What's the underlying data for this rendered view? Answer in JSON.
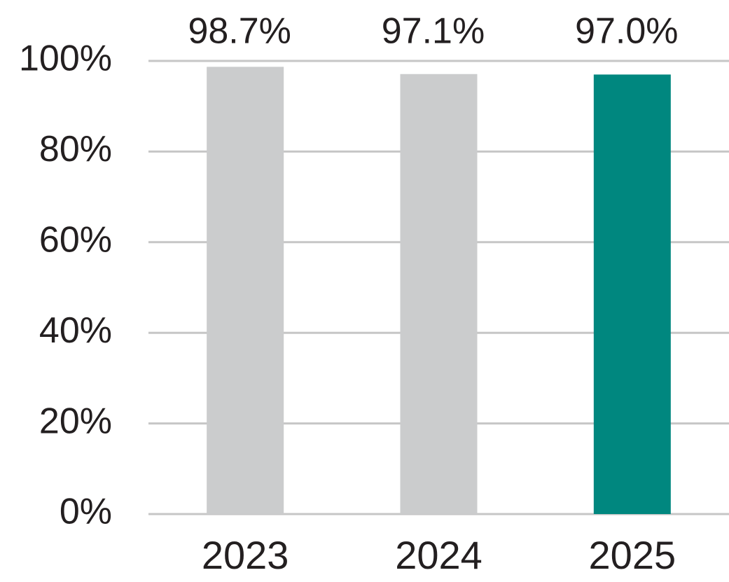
{
  "chart_data": {
    "type": "bar",
    "categories": [
      "2023",
      "2024",
      "2025"
    ],
    "values": [
      98.7,
      97.1,
      97.0
    ],
    "value_labels": [
      "98.7%",
      "97.1%",
      "97.0%"
    ],
    "colors": [
      "#cbcccd",
      "#cbcccd",
      "#00877f"
    ],
    "ylim": [
      0,
      100
    ],
    "yticks": [
      {
        "value": 0,
        "label": "0%"
      },
      {
        "value": 20,
        "label": "20%"
      },
      {
        "value": 40,
        "label": "40%"
      },
      {
        "value": 60,
        "label": "60%"
      },
      {
        "value": 80,
        "label": "80%"
      },
      {
        "value": 100,
        "label": "100%"
      }
    ],
    "grid": true
  }
}
